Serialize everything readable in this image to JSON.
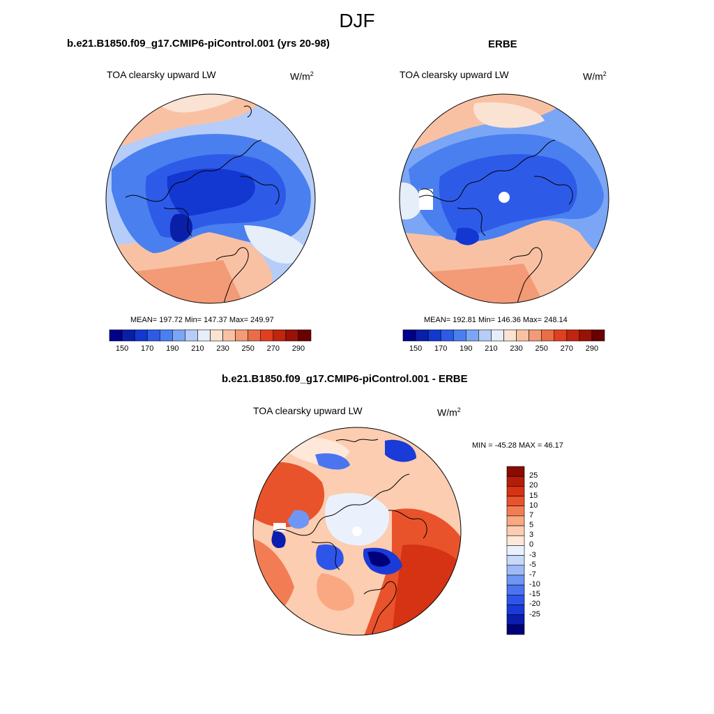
{
  "figure": {
    "title": "DJF",
    "units_base": "W/m",
    "units_sup": "2",
    "colors": {
      "abs_levels": [
        "#00008b",
        "#0a1fa8",
        "#1337d1",
        "#2d5be8",
        "#4a7ff0",
        "#7aa6f5",
        "#b5cdf8",
        "#e6eef9",
        "#fbe3d3",
        "#f9c1a3",
        "#f39a76",
        "#eb6d47",
        "#e0401f",
        "#c1250f",
        "#9a1207",
        "#6b0000"
      ],
      "diff_levels": [
        "#00007a",
        "#0b1cb0",
        "#1a3bd8",
        "#2e55ea",
        "#4b74f0",
        "#6f96f4",
        "#9dbaf7",
        "#c7d8fa",
        "#eaf1fd",
        "#fde8d9",
        "#fccdb0",
        "#f9a882",
        "#f27d55",
        "#e9532c",
        "#d53313",
        "#b41d08",
        "#8a0b02"
      ],
      "land_line": "#000000"
    }
  },
  "panels": [
    {
      "case": "b.e21.B1850.f09_g17.CMIP6-piControl.001 (yrs 20-98)",
      "field": "TOA clearsky upward LW",
      "stats": "MEAN= 197.72  Min= 147.37  Max= 249.97"
    },
    {
      "case": "ERBE",
      "field": "TOA clearsky upward LW",
      "stats": "MEAN= 192.81  Min= 146.36  Max= 248.14"
    },
    {
      "case": "b.e21.B1850.f09_g17.CMIP6-piControl.001 - ERBE",
      "field": "TOA clearsky upward LW",
      "stats": "MIN = -45.28 MAX =  46.17"
    }
  ],
  "chart_data": [
    {
      "type": "heatmap",
      "projection": "north-polar-stereographic",
      "title": "TOA clearsky upward LW",
      "subtitle": "b.e21.B1850.f09_g17.CMIP6-piControl.001 (yrs 20-98)",
      "units": "W/m2",
      "mean": 197.72,
      "min": 147.37,
      "max": 249.97,
      "colorbar_levels": [
        150,
        160,
        170,
        180,
        190,
        200,
        210,
        220,
        230,
        240,
        250,
        260,
        270,
        280,
        290
      ],
      "colorbar_labels": [
        "150",
        "170",
        "190",
        "210",
        "230",
        "250",
        "270",
        "290"
      ]
    },
    {
      "type": "heatmap",
      "projection": "north-polar-stereographic",
      "title": "TOA clearsky upward LW",
      "subtitle": "ERBE",
      "units": "W/m2",
      "mean": 192.81,
      "min": 146.36,
      "max": 248.14,
      "colorbar_levels": [
        150,
        160,
        170,
        180,
        190,
        200,
        210,
        220,
        230,
        240,
        250,
        260,
        270,
        280,
        290
      ],
      "colorbar_labels": [
        "150",
        "170",
        "190",
        "210",
        "230",
        "250",
        "270",
        "290"
      ]
    },
    {
      "type": "heatmap",
      "projection": "north-polar-stereographic",
      "title": "TOA clearsky upward LW",
      "subtitle": "b.e21.B1850.f09_g17.CMIP6-piControl.001 - ERBE",
      "units": "W/m2",
      "min": -45.28,
      "max": 46.17,
      "colorbar_levels": [
        -25,
        -20,
        -15,
        -10,
        -7,
        -5,
        -3,
        0,
        3,
        5,
        7,
        10,
        15,
        20,
        25
      ],
      "colorbar_labels": [
        "25",
        "20",
        "15",
        "10",
        "7",
        "5",
        "3",
        "0",
        "-3",
        "-5",
        "-7",
        "-10",
        "-15",
        "-20",
        "-25"
      ]
    }
  ]
}
